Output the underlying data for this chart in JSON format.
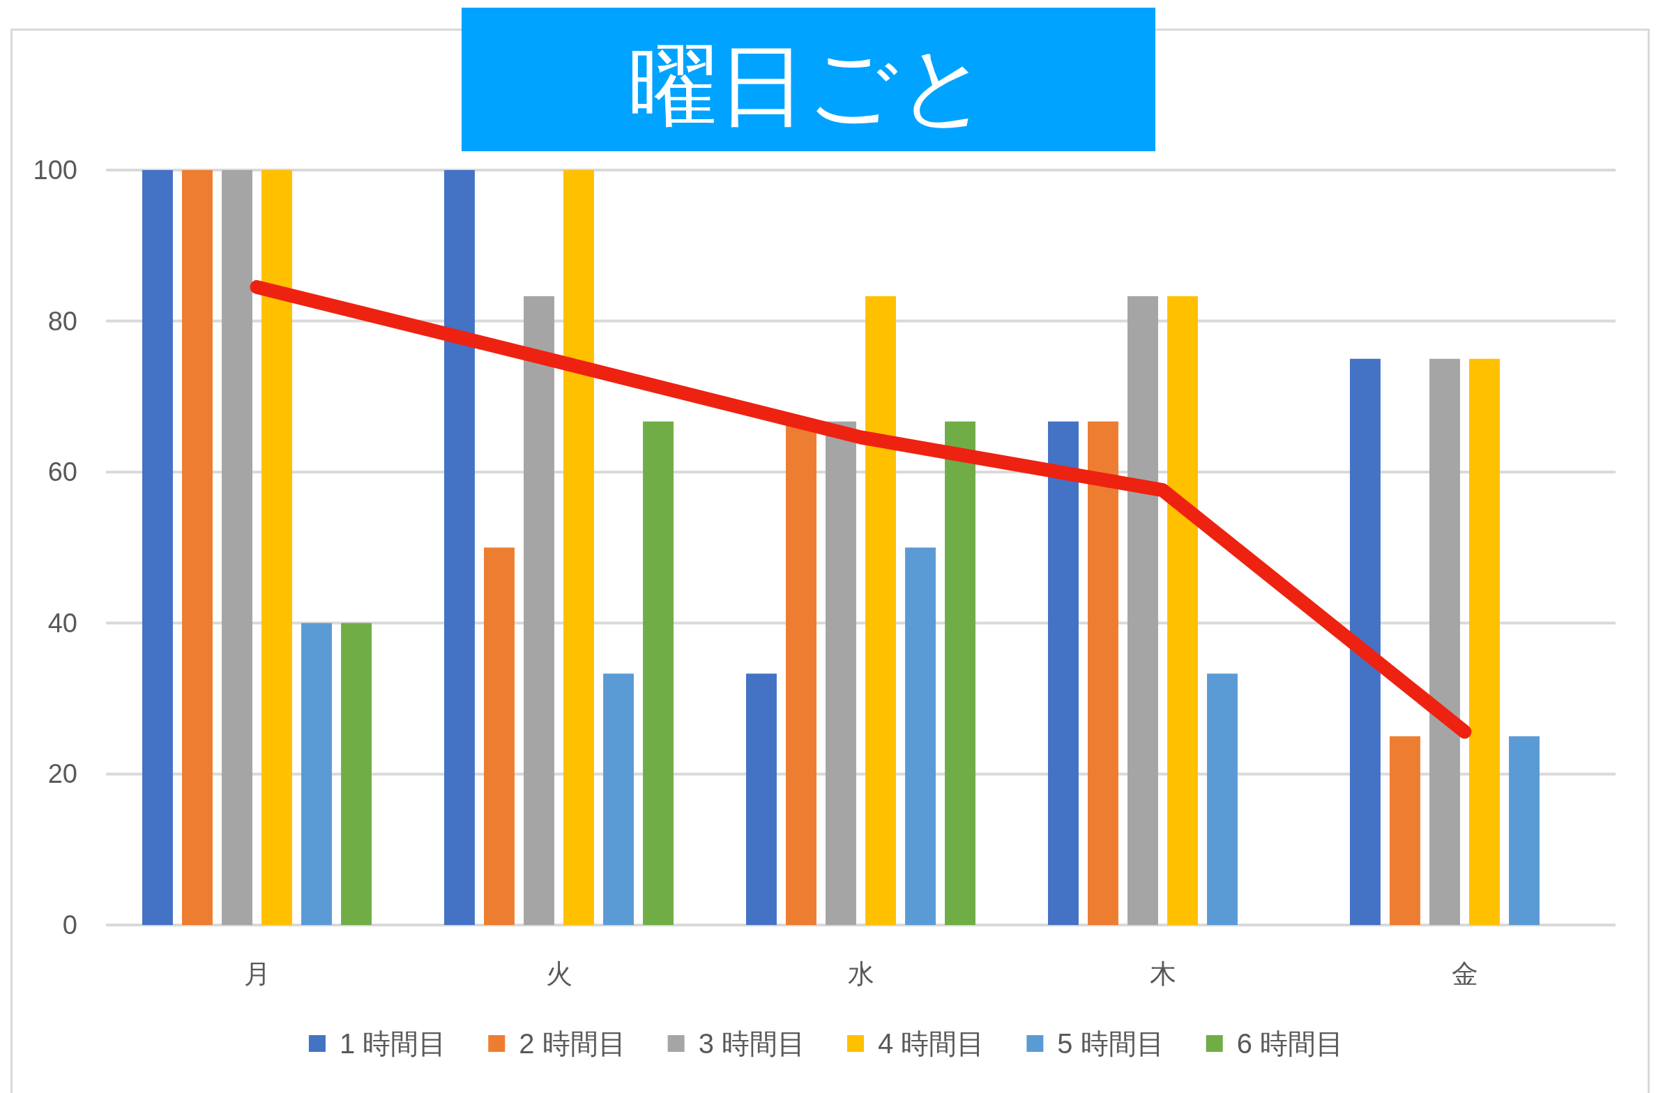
{
  "chart_data": {
    "type": "bar",
    "title": "曜日ごと",
    "categories": [
      "月",
      "火",
      "水",
      "木",
      "金"
    ],
    "series": [
      {
        "name": "1 時間目",
        "color": "#4472c4",
        "values": [
          100,
          100,
          33.3,
          66.7,
          75
        ]
      },
      {
        "name": "2 時間目",
        "color": "#ed7d31",
        "values": [
          100,
          50,
          66.7,
          66.7,
          25
        ]
      },
      {
        "name": "3 時間目",
        "color": "#a5a5a5",
        "values": [
          100,
          83.3,
          66.7,
          83.3,
          75
        ]
      },
      {
        "name": "4 時間目",
        "color": "#ffc000",
        "values": [
          100,
          100,
          83.3,
          83.3,
          75
        ]
      },
      {
        "name": "5 時間目",
        "color": "#5b9bd5",
        "values": [
          40,
          33.3,
          50,
          33.3,
          25
        ]
      },
      {
        "name": "6 時間目",
        "color": "#70ad47",
        "values": [
          40,
          66.7,
          66.7,
          null,
          null
        ]
      },
      {
        "type": "line",
        "color": "#ee2211",
        "values": [
          84.5,
          74.6,
          64.6,
          57.6,
          25.6
        ]
      }
    ],
    "ylim": [
      0,
      100
    ],
    "yticks": [
      0,
      20,
      40,
      60,
      80,
      100
    ],
    "grid": "y",
    "legend": "bottom"
  }
}
